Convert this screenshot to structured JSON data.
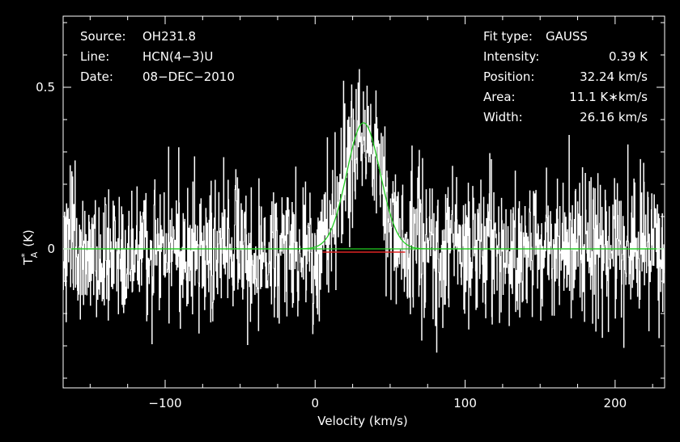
{
  "chart_data": {
    "type": "line",
    "xlabel": "Velocity (km/s)",
    "ylabel_main": "T",
    "ylabel_sup": "*",
    "ylabel_sub": "A",
    "ylabel_unit": "(K)",
    "xlim": [
      -168,
      233
    ],
    "ylim": [
      -0.43,
      0.72
    ],
    "x_ticks": [
      -100,
      0,
      100,
      200
    ],
    "x_tick_labels": [
      "−100",
      "0",
      "100",
      "200"
    ],
    "y_ticks": [
      0,
      0.5
    ],
    "y_tick_labels": [
      "0",
      "0.5"
    ],
    "grid": false,
    "colors": {
      "background": "#000000",
      "axes": "#ffffff",
      "spectrum": "#ffffff",
      "fit": "#22cc22",
      "baseline_window": "#dd2222"
    },
    "header_left": [
      {
        "key": "Source:",
        "value": "OH231.8"
      },
      {
        "key": "Line:",
        "value": "HCN(4−3)U"
      },
      {
        "key": "Date:",
        "value": "08−DEC−2010"
      }
    ],
    "header_right": [
      {
        "key": "Fit type:",
        "value": "GAUSS"
      },
      {
        "key": "Intensity:",
        "value": "0.39 K"
      },
      {
        "key": "Position:",
        "value": "32.24 km/s"
      },
      {
        "key": "Area:",
        "value": "11.1 K∗km/s"
      },
      {
        "key": "Width:",
        "value": "26.16 km/s"
      }
    ],
    "series": [
      {
        "kind": "spectrum",
        "x_start": -168,
        "x_step": 0.27,
        "peak_intensity": 0.39,
        "peak_position": 32.24,
        "fwhm": 26.16,
        "noise_sigma": 0.11
      },
      {
        "kind": "gaussian_fit",
        "amplitude": 0.39,
        "center": 32.24,
        "fwhm": 26.16,
        "x_range": [
          -168,
          233
        ]
      },
      {
        "kind": "window_marker",
        "x_range": [
          5,
          60
        ],
        "y": -0.01
      }
    ]
  }
}
